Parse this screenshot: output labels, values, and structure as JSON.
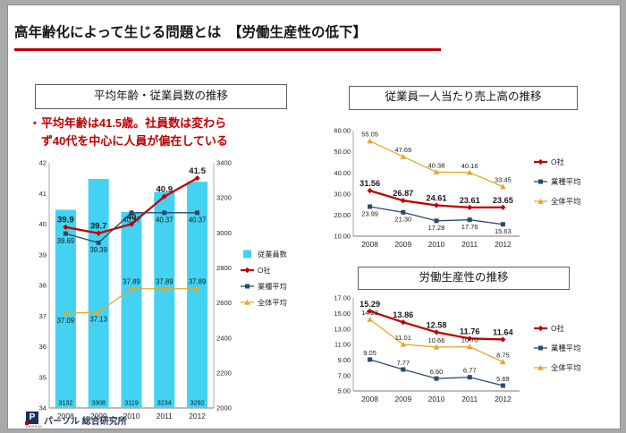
{
  "slide": {
    "title": "高年齢化によって生じる問題とは　【労働生産性の低下】",
    "accent_color": "#c00000"
  },
  "left_panel": {
    "bullet": "•",
    "annotation": "平均年齢は41.5歳。社員数は変わらず40代を中心に人員が偏在している"
  },
  "footer": {
    "brand": "パーソル 総合研究所",
    "logo_letter": "P",
    "logo_sub": "PERSOL"
  },
  "chart_data": [
    {
      "type": "combo",
      "title": "平均年齢・従業員数の推移",
      "categories": [
        "2008",
        "2009",
        "2010",
        "2011",
        "2012"
      ],
      "bars": {
        "name": "従業員数",
        "values": [
          3132,
          3308,
          3119,
          3234,
          3292
        ],
        "labels": [
          "3132",
          "3308",
          "3119",
          "3234",
          "3292"
        ],
        "color": "#43d2f2",
        "axis": "right"
      },
      "series": [
        {
          "name": "O社",
          "values": [
            39.9,
            39.7,
            40,
            40.9,
            41.5
          ],
          "labels": [
            "39.9",
            "39.7",
            "40",
            "40.9",
            "41.5"
          ],
          "color": "#c00000",
          "marker": "diamond",
          "emphasis": true,
          "label_side": "above"
        },
        {
          "name": "業種平均",
          "values": [
            39.69,
            39.39,
            40.37,
            40.37,
            40.37
          ],
          "labels": [
            "39.69",
            "39.39",
            "40.37",
            "40.37",
            "40.37"
          ],
          "color": "#2a4a6e",
          "marker": "square",
          "label_side": "below"
        },
        {
          "name": "全体平均",
          "values": [
            37.09,
            37.13,
            37.89,
            37.89,
            37.89
          ],
          "labels": [
            "37.09",
            "37.13",
            "37.89",
            "37.89",
            "37.89"
          ],
          "color": "#e0a92c",
          "marker": "triangle",
          "label_sides": [
            "below",
            "below",
            "above",
            "above",
            "above"
          ]
        }
      ],
      "y_left": {
        "min": 34,
        "max": 42,
        "ticks": [
          "34",
          "35",
          "36",
          "37",
          "38",
          "39",
          "40",
          "41",
          "42"
        ]
      },
      "y_right": {
        "min": 2000,
        "max": 3400,
        "ticks": [
          "2000",
          "2200",
          "2400",
          "2600",
          "2800",
          "3000",
          "3200",
          "3400"
        ]
      },
      "legend_position": "right",
      "grid": false
    },
    {
      "type": "line",
      "title": "従業員一人当たり売上高の推移",
      "categories": [
        "2008",
        "2009",
        "2010",
        "2011",
        "2012"
      ],
      "series": [
        {
          "name": "O社",
          "values": [
            31.56,
            26.87,
            24.61,
            23.61,
            23.65
          ],
          "labels": [
            "31.56",
            "26.87",
            "24.61",
            "23.61",
            "23.65"
          ],
          "color": "#c00000",
          "marker": "diamond",
          "emphasis": true,
          "label_side": "above"
        },
        {
          "name": "業種平均",
          "values": [
            23.99,
            21.3,
            17.28,
            17.76,
            15.63
          ],
          "labels": [
            "23.99",
            "21.30",
            "17.28",
            "17.76",
            "15.63"
          ],
          "color": "#2a4a6e",
          "marker": "square",
          "label_side": "below"
        },
        {
          "name": "全体平均",
          "values": [
            55.05,
            47.69,
            40.38,
            40.16,
            33.45
          ],
          "labels": [
            "55.05",
            "47.69",
            "40.38",
            "40.16",
            "33.45"
          ],
          "color": "#e0a92c",
          "marker": "triangle",
          "label_side": "above"
        }
      ],
      "y_left": {
        "min": 10,
        "max": 60,
        "ticks": [
          "10.00",
          "20.00",
          "30.00",
          "40.00",
          "50.00",
          "60.00"
        ]
      },
      "legend_position": "right",
      "grid": false
    },
    {
      "type": "line",
      "title": "労働生産性の推移",
      "categories": [
        "2008",
        "2009",
        "2010",
        "2011",
        "2012"
      ],
      "series": [
        {
          "name": "O社",
          "values": [
            15.29,
            13.86,
            12.58,
            11.76,
            11.64
          ],
          "labels": [
            "15.29",
            "13.86",
            "12.58",
            "11.76",
            "11.64"
          ],
          "color": "#c00000",
          "marker": "diamond",
          "emphasis": true,
          "label_side": "above"
        },
        {
          "name": "業種平均",
          "values": [
            9.05,
            7.77,
            6.6,
            6.77,
            5.69
          ],
          "labels": [
            "9.05",
            "7.77",
            "6.60",
            "6.77",
            "5.69"
          ],
          "color": "#2a4a6e",
          "marker": "square",
          "label_side": "above"
        },
        {
          "name": "全体平均",
          "values": [
            14.23,
            11.01,
            10.66,
            10.7,
            8.75
          ],
          "labels": [
            "14.23",
            "11.01",
            "10.66",
            "10.70",
            "8.75"
          ],
          "color": "#e0a92c",
          "marker": "triangle",
          "label_side": "above"
        }
      ],
      "y_left": {
        "min": 5,
        "max": 17,
        "ticks": [
          "5.00",
          "7.00",
          "9.00",
          "11.00",
          "13.00",
          "15.00",
          "17.00"
        ]
      },
      "legend_position": "right",
      "grid": false
    }
  ]
}
